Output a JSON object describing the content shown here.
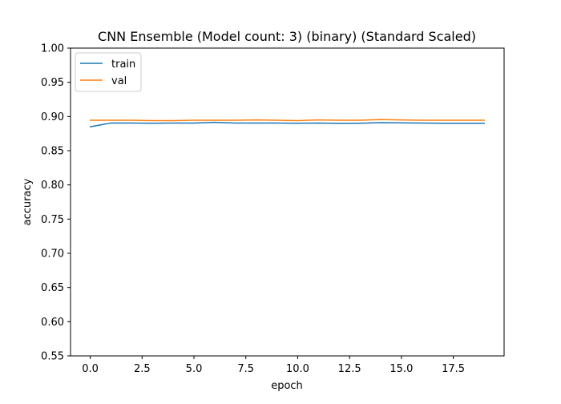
{
  "chart_data": {
    "type": "line",
    "title": "CNN Ensemble (Model count: 3) (binary) (Standard Scaled)",
    "xlabel": "epoch",
    "ylabel": "accuracy",
    "xlim": [
      -0.95,
      19.95
    ],
    "ylim": [
      0.55,
      1.0
    ],
    "x_ticks": [
      0.0,
      2.5,
      5.0,
      7.5,
      10.0,
      12.5,
      15.0,
      17.5
    ],
    "x_tick_labels": [
      "0.0",
      "2.5",
      "5.0",
      "7.5",
      "10.0",
      "12.5",
      "15.0",
      "17.5"
    ],
    "y_ticks": [
      0.55,
      0.6,
      0.65,
      0.7,
      0.75,
      0.8,
      0.85,
      0.9,
      0.95,
      1.0
    ],
    "y_tick_labels": [
      "0.55",
      "0.60",
      "0.65",
      "0.70",
      "0.75",
      "0.80",
      "0.85",
      "0.90",
      "0.95",
      "1.00"
    ],
    "grid": false,
    "legend_position": "top-left",
    "x": [
      0,
      1,
      2,
      3,
      4,
      5,
      6,
      7,
      8,
      9,
      10,
      11,
      12,
      13,
      14,
      15,
      16,
      17,
      18,
      19
    ],
    "series": [
      {
        "name": "train",
        "color": "#1f77b4",
        "values": [
          0.885,
          0.8905,
          0.8905,
          0.8902,
          0.8905,
          0.8905,
          0.8915,
          0.8905,
          0.8905,
          0.8905,
          0.8902,
          0.8905,
          0.89,
          0.8902,
          0.891,
          0.8907,
          0.8905,
          0.8902,
          0.8902,
          0.8902
        ]
      },
      {
        "name": "val",
        "color": "#ff7f0e",
        "values": [
          0.8945,
          0.8945,
          0.8945,
          0.894,
          0.894,
          0.8945,
          0.8945,
          0.8945,
          0.895,
          0.8945,
          0.894,
          0.895,
          0.8945,
          0.8945,
          0.8955,
          0.895,
          0.8945,
          0.8945,
          0.8945,
          0.8945
        ]
      }
    ]
  }
}
